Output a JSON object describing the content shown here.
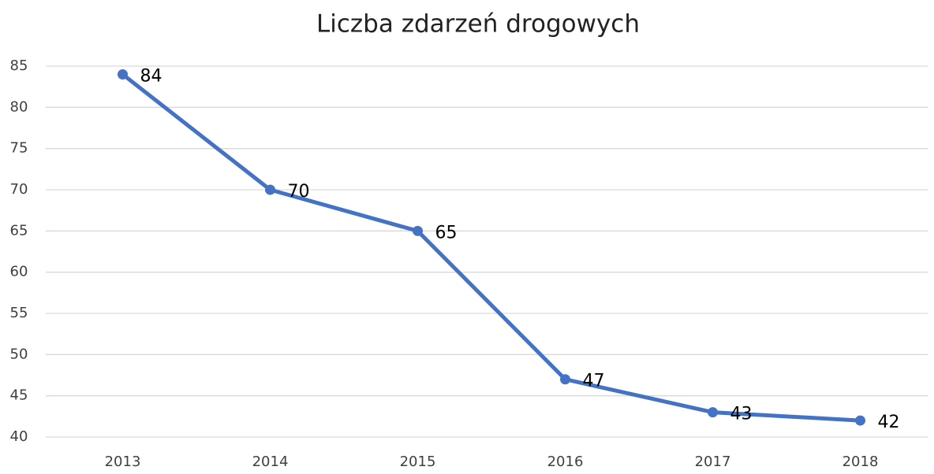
{
  "chart_data": {
    "type": "line",
    "title": "Liczba zdarzeń drogowych",
    "categories": [
      "2013",
      "2014",
      "2015",
      "2016",
      "2017",
      "2018"
    ],
    "series": [
      {
        "color": "#4472c4",
        "values": [
          84,
          70,
          65,
          47,
          43,
          42
        ]
      }
    ],
    "ylim": [
      40,
      85
    ],
    "yticks": [
      40,
      45,
      50,
      55,
      60,
      65,
      70,
      75,
      80,
      85
    ],
    "grid": true
  }
}
